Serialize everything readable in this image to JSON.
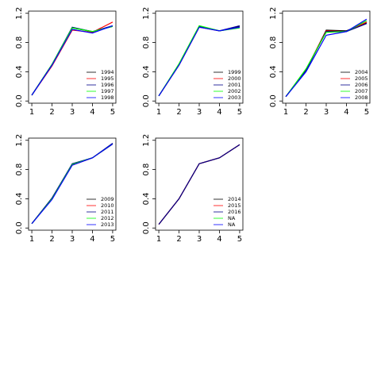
{
  "chart_data": [
    {
      "type": "line",
      "x": [
        1,
        2,
        3,
        4,
        5
      ],
      "xlim": [
        0.84,
        5.16
      ],
      "ylim": [
        -0.03,
        1.23
      ],
      "xticks": [
        1,
        2,
        3,
        4,
        5
      ],
      "yticks": [
        {
          "value": 0,
          "label": "0.0"
        },
        0.4,
        0.8,
        1.2
      ],
      "series": [
        {
          "name": "1994",
          "color": "#000000",
          "values": [
            0.08,
            0.5,
            1.0,
            0.95,
            1.02
          ]
        },
        {
          "name": "1995",
          "color": "#ff0000",
          "values": [
            0.08,
            0.48,
            0.97,
            0.94,
            1.08
          ]
        },
        {
          "name": "1996",
          "color": "#00008b",
          "values": [
            0.08,
            0.5,
            1.01,
            0.95,
            1.03
          ]
        },
        {
          "name": "1997",
          "color": "#00ff00",
          "values": [
            0.08,
            0.5,
            1.0,
            0.95,
            1.02
          ]
        },
        {
          "name": "1998",
          "color": "#0000ff",
          "values": [
            0.08,
            0.49,
            0.98,
            0.93,
            1.03
          ]
        }
      ]
    },
    {
      "type": "line",
      "x": [
        1,
        2,
        3,
        4,
        5
      ],
      "xlim": [
        0.84,
        5.16
      ],
      "ylim": [
        -0.03,
        1.23
      ],
      "xticks": [
        1,
        2,
        3,
        4,
        5
      ],
      "yticks": [
        {
          "value": 0,
          "label": "0.0"
        },
        0.4,
        0.8,
        1.2
      ],
      "series": [
        {
          "name": "1999",
          "color": "#000000",
          "values": [
            0.07,
            0.5,
            1.02,
            0.96,
            1.02
          ]
        },
        {
          "name": "2000",
          "color": "#ff0000",
          "values": [
            0.07,
            0.49,
            1.01,
            0.96,
            1.01
          ]
        },
        {
          "name": "2001",
          "color": "#00008b",
          "values": [
            0.07,
            0.5,
            1.02,
            0.96,
            1.03
          ]
        },
        {
          "name": "2002",
          "color": "#00ff00",
          "values": [
            0.07,
            0.51,
            1.03,
            0.96,
            1.0
          ]
        },
        {
          "name": "2003",
          "color": "#0000ff",
          "values": [
            0.07,
            0.49,
            1.01,
            0.96,
            1.01
          ]
        }
      ]
    },
    {
      "type": "line",
      "x": [
        1,
        2,
        3,
        4,
        5
      ],
      "xlim": [
        0.84,
        5.16
      ],
      "ylim": [
        -0.03,
        1.23
      ],
      "xticks": [
        1,
        2,
        3,
        4,
        5
      ],
      "yticks": [
        {
          "value": 0,
          "label": "0.0"
        },
        0.4,
        0.8,
        1.2
      ],
      "series": [
        {
          "name": "2004",
          "color": "#000000",
          "values": [
            0.06,
            0.42,
            0.97,
            0.96,
            1.07
          ]
        },
        {
          "name": "2005",
          "color": "#ff0000",
          "values": [
            0.06,
            0.43,
            0.96,
            0.95,
            1.08
          ]
        },
        {
          "name": "2006",
          "color": "#00008b",
          "values": [
            0.06,
            0.42,
            0.95,
            0.95,
            1.06
          ]
        },
        {
          "name": "2007",
          "color": "#00ff00",
          "values": [
            0.06,
            0.44,
            0.94,
            0.95,
            1.1
          ]
        },
        {
          "name": "2008",
          "color": "#0000ff",
          "values": [
            0.06,
            0.4,
            0.9,
            0.95,
            1.12
          ]
        }
      ]
    },
    {
      "type": "line",
      "x": [
        1,
        2,
        3,
        4,
        5
      ],
      "xlim": [
        0.84,
        5.16
      ],
      "ylim": [
        -0.03,
        1.23
      ],
      "xticks": [
        1,
        2,
        3,
        4,
        5
      ],
      "yticks": [
        {
          "value": 0,
          "label": "0.0"
        },
        0.4,
        0.8,
        1.2
      ],
      "series": [
        {
          "name": "2009",
          "color": "#000000",
          "values": [
            0.06,
            0.41,
            0.87,
            0.96,
            1.15
          ]
        },
        {
          "name": "2010",
          "color": "#ff0000",
          "values": [
            0.06,
            0.4,
            0.86,
            0.96,
            1.15
          ]
        },
        {
          "name": "2011",
          "color": "#00008b",
          "values": [
            0.06,
            0.41,
            0.88,
            0.96,
            1.16
          ]
        },
        {
          "name": "2012",
          "color": "#00ff00",
          "values": [
            0.06,
            0.4,
            0.87,
            0.96,
            1.15
          ]
        },
        {
          "name": "2013",
          "color": "#0000ff",
          "values": [
            0.06,
            0.39,
            0.86,
            0.96,
            1.15
          ]
        }
      ]
    },
    {
      "type": "line",
      "x": [
        1,
        2,
        3,
        4,
        5
      ],
      "xlim": [
        0.84,
        5.16
      ],
      "ylim": [
        -0.03,
        1.23
      ],
      "xticks": [
        1,
        2,
        3,
        4,
        5
      ],
      "yticks": [
        {
          "value": 0,
          "label": "0.0"
        },
        0.4,
        0.8,
        1.2
      ],
      "series": [
        {
          "name": "2014",
          "color": "#000000",
          "values": [
            0.05,
            0.4,
            0.88,
            0.96,
            1.14
          ]
        },
        {
          "name": "2015",
          "color": "#ff0000",
          "values": [
            0.05,
            0.4,
            0.88,
            0.96,
            1.14
          ]
        },
        {
          "name": "2016",
          "color": "#00008b",
          "values": [
            0.05,
            0.4,
            0.88,
            0.96,
            1.14
          ]
        },
        {
          "name": "NA",
          "color": "#00ff00",
          "values": [
            null,
            null,
            null,
            null,
            null
          ]
        },
        {
          "name": "NA",
          "color": "#0000ff",
          "values": [
            null,
            null,
            null,
            null,
            null
          ]
        }
      ]
    }
  ]
}
